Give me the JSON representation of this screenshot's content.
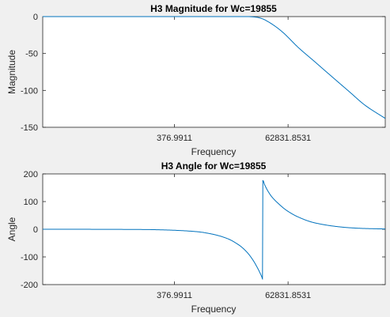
{
  "chart_data": [
    {
      "type": "line",
      "title": "H3 Magnitude for Wc=19855",
      "xlabel": "Frequency",
      "ylabel": "Magnitude",
      "x_scale": "log",
      "xlim": [
        1,
        5000000
      ],
      "ylim": [
        -150,
        0
      ],
      "x_ticks": [
        376.9911,
        62831.8531
      ],
      "x_tick_labels": [
        "376.9911",
        "62831.8531"
      ],
      "y_ticks": [
        -150,
        -100,
        -50,
        0
      ],
      "y_tick_labels": [
        "-150",
        "-100",
        "-50",
        "0"
      ],
      "grid": false,
      "color": "#0072bd",
      "series": [
        {
          "x": [
            1,
            1000,
            5000,
            10000,
            15000,
            19855,
            25000,
            35000,
            50000,
            100000,
            200000,
            500000,
            1000000,
            2000000,
            5000000
          ],
          "values": [
            0,
            0,
            0,
            0,
            -0.8,
            -3,
            -6.5,
            -13,
            -21.5,
            -42,
            -60,
            -84,
            -102,
            -120,
            -138
          ]
        }
      ]
    },
    {
      "type": "line",
      "title": "H3 Angle for Wc=19855",
      "xlabel": "Frequency",
      "ylabel": "Angle",
      "x_scale": "log",
      "xlim": [
        1,
        5000000
      ],
      "ylim": [
        -200,
        200
      ],
      "x_ticks": [
        376.9911,
        62831.8531
      ],
      "x_tick_labels": [
        "376.9911",
        "62831.8531"
      ],
      "y_ticks": [
        -200,
        -100,
        0,
        100,
        200
      ],
      "y_tick_labels": [
        "-200",
        "-100",
        "0",
        "100",
        "200"
      ],
      "grid": false,
      "color": "#0072bd",
      "series": [
        {
          "x": [
            1,
            10,
            100,
            300,
            1000,
            2000,
            4000,
            7000,
            10000,
            13000,
            16000,
            18000,
            19500,
            19855,
            20200,
            22000,
            25000,
            30000,
            40000,
            60000,
            100000,
            200000,
            500000,
            1000000,
            2000000,
            5000000
          ],
          "values": [
            0,
            -0.2,
            -1,
            -3,
            -8.5,
            -17,
            -33,
            -58,
            -84,
            -112,
            -141,
            -160,
            -175,
            -180,
            176,
            160,
            140,
            118,
            94,
            67,
            44,
            24,
            11,
            5.5,
            2.7,
            1
          ]
        }
      ]
    }
  ]
}
